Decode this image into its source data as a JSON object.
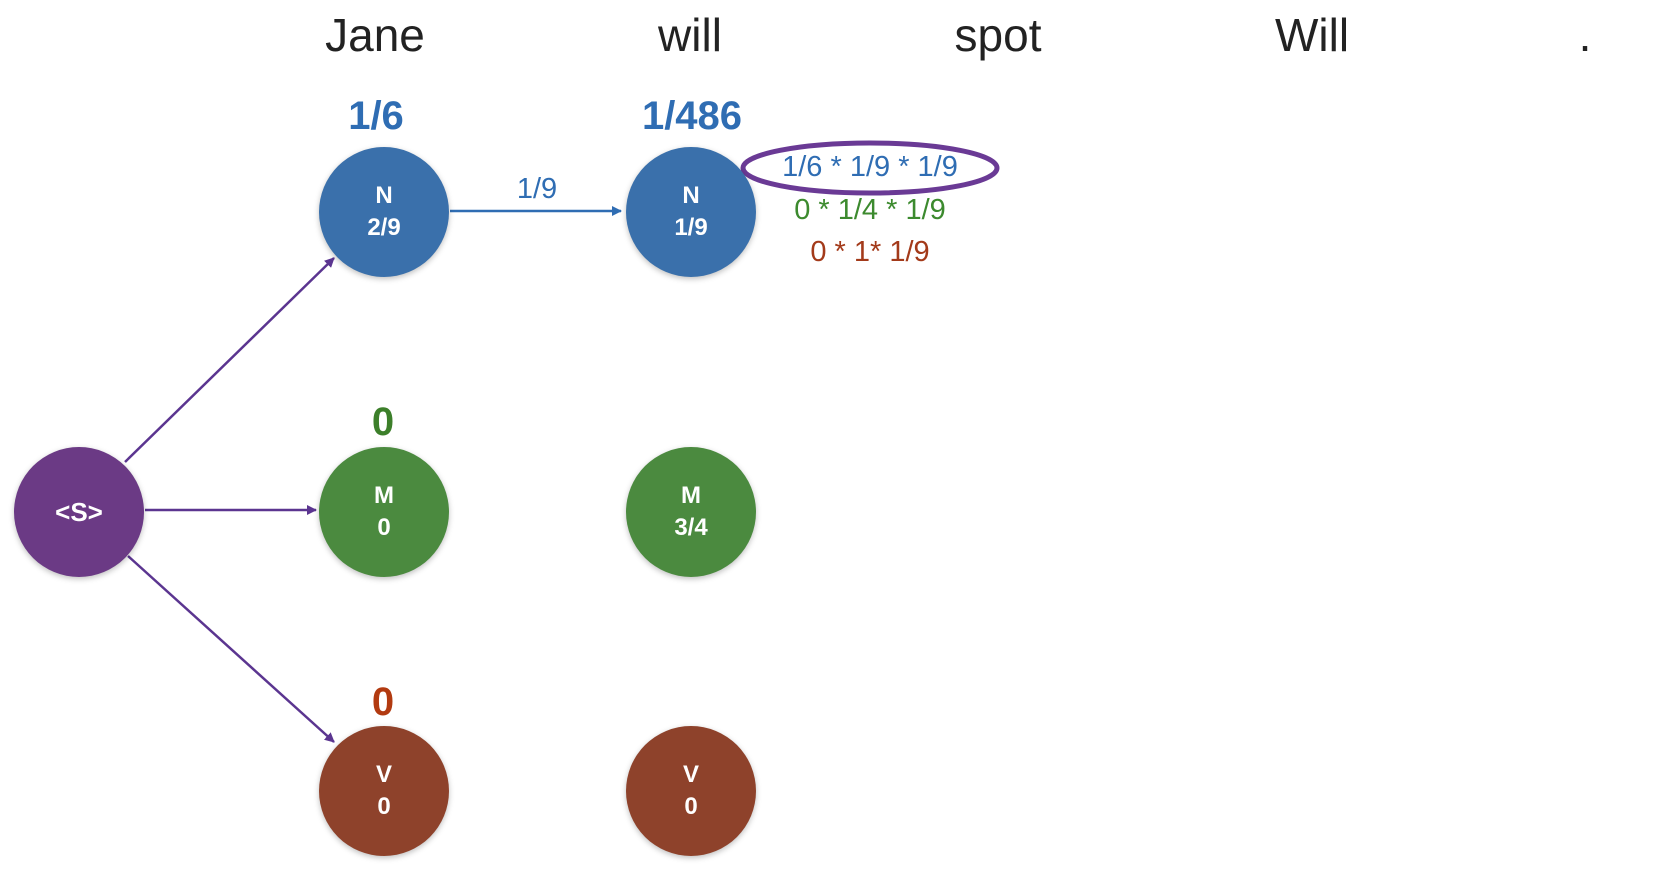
{
  "words": [
    "Jane",
    "will",
    "spot",
    "Will",
    "."
  ],
  "colors": {
    "noun": "#3a70ab",
    "modal": "#4b8a3f",
    "verb": "#8e422b",
    "start": "#6b3a85",
    "score_noun": "#2f6db3",
    "score_modal": "#3c7f2a",
    "score_verb": "#b23a10",
    "edge_start": "#5b3590",
    "edge_noun": "#2f6db3",
    "highlight": "#6a3a95"
  },
  "start_node": {
    "label": "<S>"
  },
  "columns": [
    {
      "scores": {
        "noun": "1/6",
        "modal": "0",
        "verb": "0"
      },
      "nodes": [
        {
          "tag": "N",
          "value": "2/9"
        },
        {
          "tag": "M",
          "value": "0"
        },
        {
          "tag": "V",
          "value": "0"
        }
      ]
    },
    {
      "scores": {
        "noun": "1/486"
      },
      "nodes": [
        {
          "tag": "N",
          "value": "1/9"
        },
        {
          "tag": "M",
          "value": "3/4"
        },
        {
          "tag": "V",
          "value": "0"
        }
      ]
    }
  ],
  "edge_label": "1/9",
  "calculations": [
    {
      "text": "1/6 * 1/9 * 1/9",
      "color": "#2f6db3",
      "highlighted": true
    },
    {
      "text": "0 * 1/4 * 1/9",
      "color": "#3c8a2e"
    },
    {
      "text": "0 * 1* 1/9",
      "color": "#a33a1a"
    }
  ]
}
